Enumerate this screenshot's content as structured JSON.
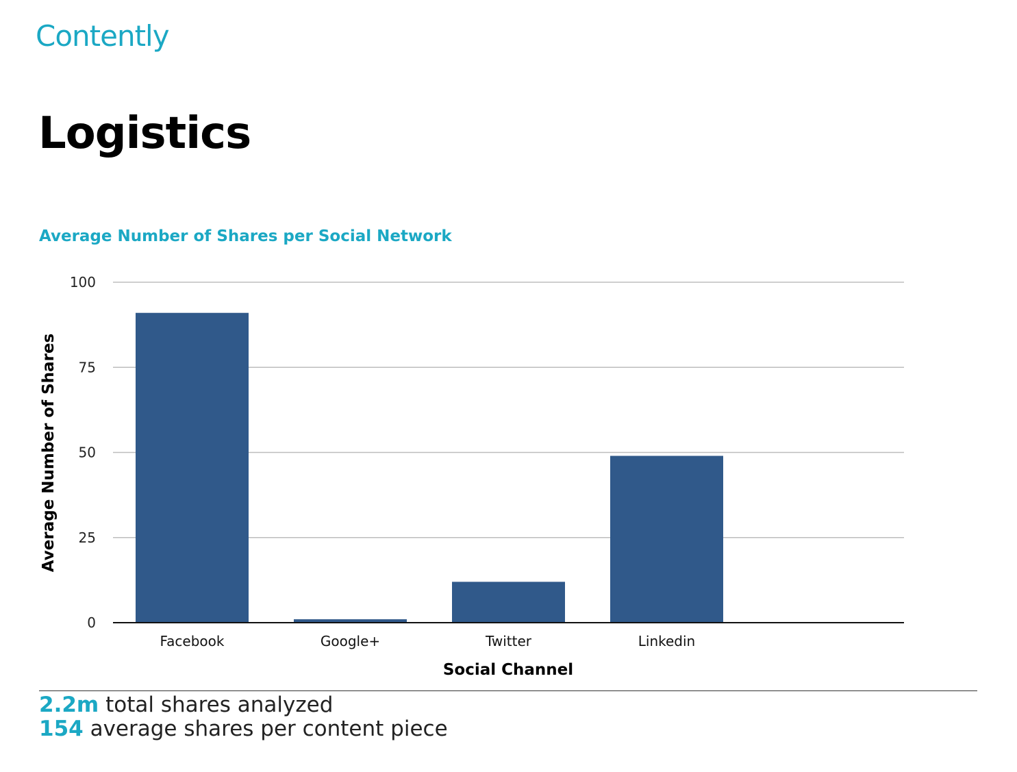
{
  "brand": {
    "logo_text": "Contently",
    "color": "#1ba8c4"
  },
  "page_title": "Logistics",
  "chart_data": {
    "type": "bar",
    "title": "Average Number of Shares per Social Network",
    "xlabel": "Social Channel",
    "ylabel": "Average Number of Shares",
    "categories": [
      "Facebook",
      "Google+",
      "Twitter",
      "Linkedin"
    ],
    "values": [
      91,
      1,
      12,
      49
    ],
    "ylim": [
      0,
      100
    ],
    "yticks": [
      0,
      25,
      50,
      75,
      100
    ],
    "grid": true,
    "bar_color": "#30598a"
  },
  "stats": [
    {
      "value": "2.2m",
      "label": "total shares analyzed"
    },
    {
      "value": "154",
      "label": "average shares per content piece"
    }
  ]
}
